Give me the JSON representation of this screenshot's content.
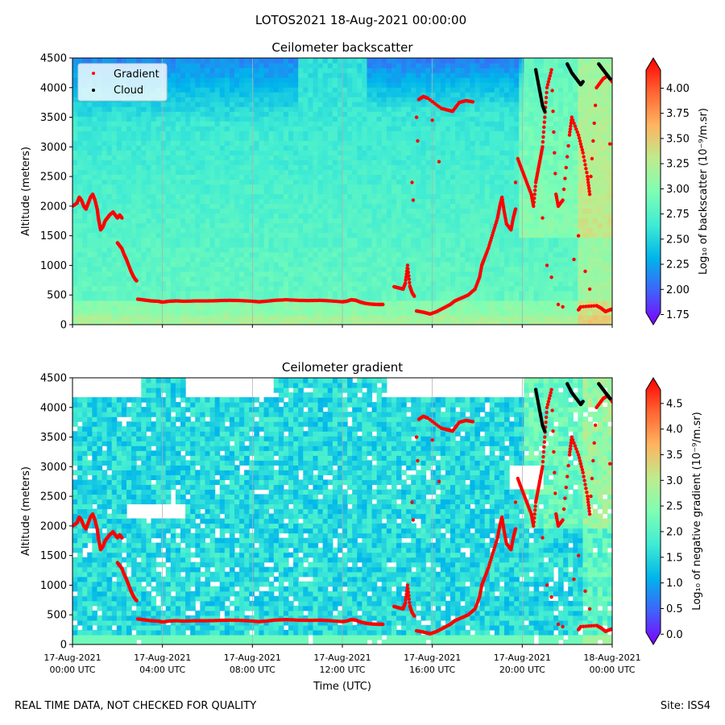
{
  "figure": {
    "suptitle": "LOTOS2021 18-Aug-2021 00:00:00",
    "footer_left": "REAL TIME DATA, NOT CHECKED FOR QUALITY",
    "footer_right": "Site: ISS4",
    "xlabel": "Time (UTC)"
  },
  "chart_data": [
    {
      "type": "heatmap",
      "title": "Ceilometer backscatter",
      "ylabel": "Altitude (meters)",
      "ylim": [
        0,
        4500
      ],
      "yticks": [
        "0",
        "500",
        "1000",
        "1500",
        "2000",
        "2500",
        "3000",
        "3500",
        "4000",
        "4500"
      ],
      "xlim_hours": [
        0,
        24
      ],
      "xticks": [
        {
          "hour": 0,
          "line1": "17-Aug-2021",
          "line2": "00:00 UTC"
        },
        {
          "hour": 4,
          "line1": "17-Aug-2021",
          "line2": "04:00 UTC"
        },
        {
          "hour": 8,
          "line1": "17-Aug-2021",
          "line2": "08:00 UTC"
        },
        {
          "hour": 12,
          "line1": "17-Aug-2021",
          "line2": "12:00 UTC"
        },
        {
          "hour": 16,
          "line1": "17-Aug-2021",
          "line2": "16:00 UTC"
        },
        {
          "hour": 20,
          "line1": "17-Aug-2021",
          "line2": "20:00 UTC"
        },
        {
          "hour": 24,
          "line1": "18-Aug-2021",
          "line2": "00:00 UTC"
        }
      ],
      "show_xtick_labels": false,
      "legend": {
        "placement": "top-left",
        "entries": [
          {
            "label": "Gradient",
            "color": "#ff0000"
          },
          {
            "label": "Cloud",
            "color": "#000000"
          }
        ]
      },
      "colorbar": {
        "label": "Log₁₀ of backscatter (10⁻⁹/m.sr)",
        "vmin": 1.65,
        "vmax": 4.3,
        "ticks": [
          "1.75",
          "2.00",
          "2.25",
          "2.50",
          "2.75",
          "3.00",
          "3.25",
          "3.50",
          "3.75",
          "4.00"
        ],
        "tick_values": [
          1.75,
          2.0,
          2.25,
          2.5,
          2.75,
          3.0,
          3.25,
          3.5,
          3.75,
          4.0
        ]
      },
      "field": "backscatter"
    },
    {
      "type": "heatmap",
      "title": "Ceilometer gradient",
      "ylabel": "Altitude (meters)",
      "ylim": [
        0,
        4500
      ],
      "yticks": [
        "0",
        "500",
        "1000",
        "1500",
        "2000",
        "2500",
        "3000",
        "3500",
        "4000",
        "4500"
      ],
      "xlim_hours": [
        0,
        24
      ],
      "show_xtick_labels": true,
      "colorbar": {
        "label": "Log₁₀ of negative gradient (10⁻⁹/m.sr)",
        "vmin": -0.2,
        "vmax": 5.0,
        "ticks": [
          "0.0",
          "0.5",
          "1.0",
          "1.5",
          "2.0",
          "2.5",
          "3.0",
          "3.5",
          "4.0",
          "4.5"
        ],
        "tick_values": [
          0.0,
          0.5,
          1.0,
          1.5,
          2.0,
          2.5,
          3.0,
          3.5,
          4.0,
          4.5
        ]
      },
      "field": "gradient"
    }
  ],
  "overlay_series": {
    "gradient_segments": [
      {
        "name": "early-layer",
        "points": [
          [
            0.0,
            2000
          ],
          [
            0.2,
            2050
          ],
          [
            0.3,
            2150
          ],
          [
            0.4,
            2100
          ],
          [
            0.5,
            2000
          ],
          [
            0.6,
            1950
          ],
          [
            0.7,
            2050
          ],
          [
            0.8,
            2150
          ],
          [
            0.9,
            2200
          ],
          [
            1.0,
            2100
          ],
          [
            1.1,
            1950
          ],
          [
            1.15,
            1800
          ],
          [
            1.2,
            1700
          ],
          [
            1.25,
            1600
          ],
          [
            1.35,
            1650
          ],
          [
            1.45,
            1750
          ],
          [
            1.55,
            1800
          ],
          [
            1.65,
            1850
          ],
          [
            1.8,
            1900
          ],
          [
            1.9,
            1850
          ],
          [
            2.0,
            1800
          ],
          [
            2.1,
            1850
          ],
          [
            2.2,
            1800
          ]
        ]
      },
      {
        "name": "descending-layer",
        "points": [
          [
            2.0,
            1380
          ],
          [
            2.1,
            1330
          ],
          [
            2.2,
            1280
          ],
          [
            2.3,
            1180
          ],
          [
            2.4,
            1100
          ],
          [
            2.5,
            1000
          ],
          [
            2.6,
            900
          ],
          [
            2.7,
            820
          ],
          [
            2.8,
            760
          ],
          [
            2.85,
            740
          ]
        ]
      },
      {
        "name": "mixed-layer",
        "points": [
          [
            2.9,
            430
          ],
          [
            3.2,
            415
          ],
          [
            3.5,
            400
          ],
          [
            3.8,
            395
          ],
          [
            4.0,
            380
          ],
          [
            4.3,
            395
          ],
          [
            4.6,
            400
          ],
          [
            5.0,
            395
          ],
          [
            5.5,
            400
          ],
          [
            6.0,
            400
          ],
          [
            6.5,
            405
          ],
          [
            7.0,
            410
          ],
          [
            7.5,
            405
          ],
          [
            8.0,
            395
          ],
          [
            8.3,
            385
          ],
          [
            8.6,
            395
          ],
          [
            9.0,
            410
          ],
          [
            9.5,
            420
          ],
          [
            10.0,
            410
          ],
          [
            10.5,
            405
          ],
          [
            11.0,
            410
          ],
          [
            11.5,
            400
          ],
          [
            12.0,
            385
          ],
          [
            12.2,
            395
          ],
          [
            12.4,
            420
          ],
          [
            12.6,
            410
          ],
          [
            12.8,
            380
          ],
          [
            13.0,
            360
          ],
          [
            13.3,
            345
          ],
          [
            13.6,
            340
          ],
          [
            13.8,
            340
          ]
        ]
      },
      {
        "name": "afternoon-spike",
        "points": [
          [
            14.3,
            640
          ],
          [
            14.5,
            620
          ],
          [
            14.7,
            600
          ],
          [
            14.8,
            700
          ],
          [
            14.9,
            1000
          ],
          [
            15.0,
            650
          ],
          [
            15.1,
            540
          ],
          [
            15.2,
            480
          ]
        ]
      },
      {
        "name": "evening-rise",
        "points": [
          [
            15.3,
            230
          ],
          [
            15.6,
            210
          ],
          [
            15.9,
            180
          ],
          [
            16.2,
            220
          ],
          [
            16.5,
            280
          ],
          [
            16.8,
            340
          ],
          [
            17.0,
            400
          ],
          [
            17.3,
            450
          ],
          [
            17.6,
            500
          ],
          [
            17.9,
            600
          ],
          [
            18.1,
            800
          ],
          [
            18.2,
            1000
          ],
          [
            18.3,
            1100
          ],
          [
            18.5,
            1300
          ],
          [
            18.7,
            1550
          ],
          [
            18.9,
            1800
          ],
          [
            19.0,
            2000
          ],
          [
            19.1,
            2150
          ],
          [
            19.2,
            1900
          ],
          [
            19.3,
            1700
          ],
          [
            19.5,
            1600
          ],
          [
            19.6,
            1800
          ],
          [
            19.7,
            1950
          ]
        ]
      },
      {
        "name": "upper-layer",
        "points": [
          [
            15.4,
            3800
          ],
          [
            15.6,
            3850
          ],
          [
            15.8,
            3820
          ],
          [
            16.4,
            3650
          ],
          [
            16.7,
            3620
          ],
          [
            16.9,
            3600
          ],
          [
            17.2,
            3750
          ],
          [
            17.5,
            3780
          ],
          [
            17.8,
            3760
          ]
        ]
      },
      {
        "name": "upper-right",
        "points": [
          [
            19.8,
            2800
          ],
          [
            20.0,
            2600
          ],
          [
            20.2,
            2400
          ],
          [
            20.4,
            2200
          ],
          [
            20.5,
            2000
          ],
          [
            20.6,
            2400
          ],
          [
            20.7,
            2600
          ],
          [
            20.8,
            2800
          ],
          [
            20.9,
            3000
          ],
          [
            21.0,
            3500
          ],
          [
            21.1,
            4000
          ],
          [
            21.3,
            4300
          ],
          [
            21.5,
            2200
          ],
          [
            21.6,
            2000
          ],
          [
            21.8,
            2100
          ],
          [
            22.1,
            3200
          ],
          [
            22.2,
            3500
          ],
          [
            22.5,
            3200
          ],
          [
            22.7,
            2900
          ],
          [
            22.9,
            2500
          ],
          [
            23.0,
            2200
          ],
          [
            23.3,
            4000
          ],
          [
            23.6,
            4150
          ],
          [
            23.8,
            4200
          ],
          [
            24.0,
            4100
          ]
        ]
      },
      {
        "name": "surface-right",
        "points": [
          [
            22.5,
            250
          ],
          [
            22.6,
            300
          ],
          [
            23.3,
            320
          ],
          [
            23.5,
            280
          ],
          [
            23.7,
            220
          ],
          [
            23.9,
            250
          ],
          [
            24.0,
            260
          ]
        ]
      }
    ],
    "cloud_segments": [
      {
        "name": "cloud-right-a",
        "points": [
          [
            20.6,
            4300
          ],
          [
            20.7,
            4100
          ],
          [
            20.8,
            3900
          ],
          [
            20.9,
            3700
          ],
          [
            21.0,
            3600
          ]
        ]
      },
      {
        "name": "cloud-right-b",
        "points": [
          [
            22.0,
            4400
          ],
          [
            22.2,
            4250
          ],
          [
            22.4,
            4150
          ],
          [
            22.6,
            4050
          ],
          [
            22.7,
            4100
          ]
        ]
      },
      {
        "name": "cloud-right-c",
        "points": [
          [
            23.4,
            4400
          ],
          [
            23.6,
            4300
          ],
          [
            23.8,
            4200
          ],
          [
            23.9,
            4150
          ]
        ]
      }
    ],
    "isolated_gradient_points": [
      [
        15.1,
        2400
      ],
      [
        15.15,
        2100
      ],
      [
        15.3,
        3500
      ],
      [
        15.35,
        3100
      ],
      [
        16.0,
        3450
      ],
      [
        16.3,
        2750
      ],
      [
        19.7,
        2400
      ],
      [
        20.9,
        1800
      ],
      [
        21.1,
        1000
      ],
      [
        21.3,
        800
      ],
      [
        21.6,
        340
      ],
      [
        21.8,
        300
      ],
      [
        22.3,
        1100
      ],
      [
        22.5,
        1500
      ],
      [
        22.8,
        900
      ],
      [
        23.0,
        600
      ],
      [
        23.9,
        3050
      ]
    ]
  }
}
